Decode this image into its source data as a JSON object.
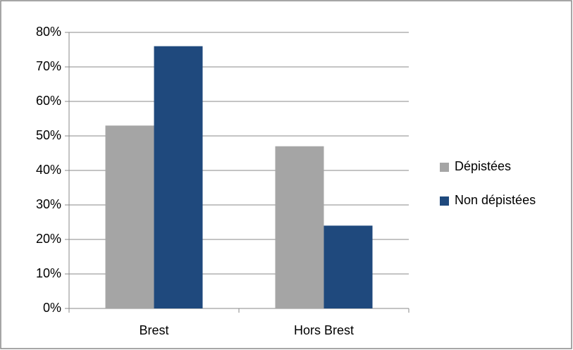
{
  "chart_data": {
    "type": "bar",
    "categories": [
      "Brest",
      "Hors Brest"
    ],
    "series": [
      {
        "name": "Dépistées",
        "color": "#a5a5a5",
        "values": [
          53,
          47
        ]
      },
      {
        "name": "Non dépistées",
        "color": "#1f497d",
        "values": [
          76,
          24
        ]
      }
    ],
    "ylim": [
      0,
      80
    ],
    "yticks": [
      {
        "value": 0,
        "label": "0%"
      },
      {
        "value": 10,
        "label": "10%"
      },
      {
        "value": 20,
        "label": "20%"
      },
      {
        "value": 30,
        "label": "30%"
      },
      {
        "value": 40,
        "label": "40%"
      },
      {
        "value": 50,
        "label": "50%"
      },
      {
        "value": 60,
        "label": "60%"
      },
      {
        "value": 70,
        "label": "70%"
      },
      {
        "value": 80,
        "label": "80%"
      }
    ],
    "grid": true,
    "legend": "right"
  }
}
